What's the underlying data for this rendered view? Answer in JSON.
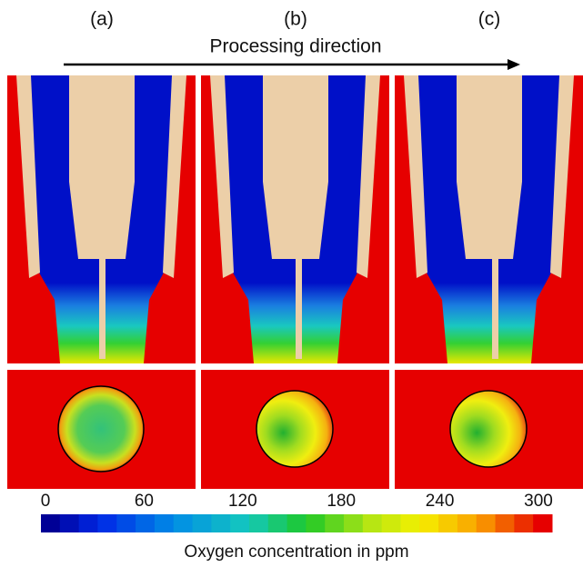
{
  "panels": [
    {
      "label": "(a)"
    },
    {
      "label": "(b)"
    },
    {
      "label": "(c)"
    }
  ],
  "arrow_label": "Processing direction",
  "colorbar": {
    "ticks": [
      0,
      60,
      120,
      180,
      240,
      300
    ],
    "label": "Oxygen concentration in ppm"
  }
}
